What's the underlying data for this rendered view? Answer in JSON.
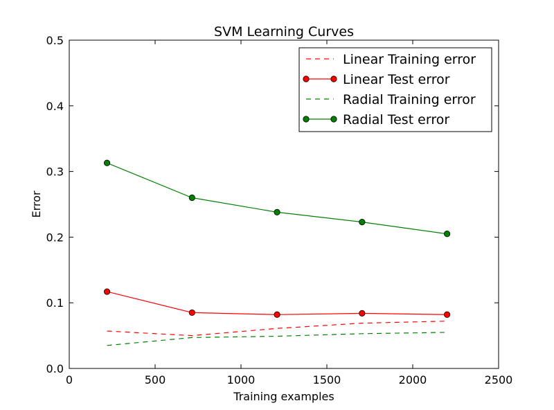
{
  "chart_data": {
    "type": "line",
    "title": "SVM Learning Curves",
    "xlabel": "Training examples",
    "ylabel": "Error",
    "xlim": [
      0,
      2500
    ],
    "ylim": [
      0.0,
      0.5
    ],
    "xticks": [
      0,
      500,
      1000,
      1500,
      2000,
      2500
    ],
    "yticks": [
      0.0,
      0.1,
      0.2,
      0.3,
      0.4,
      0.5
    ],
    "xtick_labels": [
      "0",
      "500",
      "1000",
      "1500",
      "2000",
      "2500"
    ],
    "ytick_labels": [
      "0.0",
      "0.1",
      "0.2",
      "0.3",
      "0.4",
      "0.5"
    ],
    "grid": false,
    "legend_position": "upper-right",
    "x": [
      220,
      715,
      1210,
      1705,
      2200
    ],
    "series": [
      {
        "name": "Linear Training error",
        "values": [
          0.057,
          0.05,
          0.061,
          0.069,
          0.072
        ],
        "color": "#ff0000",
        "linestyle": "dashed",
        "marker": "none"
      },
      {
        "name": "Linear Test error",
        "values": [
          0.117,
          0.085,
          0.082,
          0.084,
          0.082
        ],
        "color": "#ff0000",
        "linestyle": "solid",
        "marker": "circle"
      },
      {
        "name": "Radial Training error",
        "values": [
          0.035,
          0.047,
          0.049,
          0.053,
          0.055
        ],
        "color": "#008000",
        "linestyle": "dashed",
        "marker": "none"
      },
      {
        "name": "Radial Test error",
        "values": [
          0.313,
          0.26,
          0.238,
          0.223,
          0.205
        ],
        "color": "#008000",
        "linestyle": "solid",
        "marker": "circle"
      }
    ]
  }
}
